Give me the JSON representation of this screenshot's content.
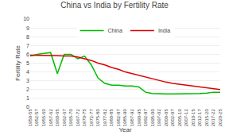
{
  "chart_data": {
    "type": "line",
    "title": "China vs India by Fertility Rate",
    "xlabel": "Year",
    "ylabel": "Fertility Rate",
    "categories": [
      "1950-55",
      "1952-57",
      "1955-60",
      "1957-62",
      "1960-65",
      "1962-67",
      "1965-70",
      "1967-72",
      "1970-75",
      "1972-77",
      "1975-80",
      "1977-82",
      "1980-85",
      "1982-87",
      "1985-90",
      "1987-92",
      "1990-95",
      "1992-97",
      "1995-00",
      "1997-02",
      "2000-05",
      "2002-07",
      "2005-10",
      "2007-12",
      "2010-15",
      "2012-17",
      "2015-20",
      "2017-22",
      "2020-25"
    ],
    "series": [
      {
        "name": "China",
        "color": "#00bb00",
        "values": [
          5.8,
          6.0,
          6.1,
          6.2,
          3.8,
          6.0,
          6.0,
          5.5,
          5.8,
          4.8,
          3.3,
          2.7,
          2.5,
          2.5,
          2.4,
          2.4,
          2.3,
          1.7,
          1.55,
          1.5,
          1.5,
          1.5,
          1.5,
          1.5,
          1.55,
          1.55,
          1.6,
          1.7,
          1.7
        ]
      },
      {
        "name": "India",
        "color": "#dd0000",
        "values": [
          5.9,
          5.9,
          5.9,
          5.9,
          5.85,
          5.8,
          5.8,
          5.7,
          5.5,
          5.3,
          5.0,
          4.8,
          4.5,
          4.3,
          4.0,
          3.8,
          3.6,
          3.4,
          3.2,
          3.0,
          2.85,
          2.7,
          2.6,
          2.5,
          2.4,
          2.3,
          2.2,
          2.1,
          2.0
        ]
      }
    ],
    "ylim": [
      0,
      10
    ],
    "yticks": [
      0,
      1,
      2,
      3,
      4,
      5,
      6,
      7,
      8,
      9,
      10
    ],
    "grid": true,
    "legend": "top"
  }
}
